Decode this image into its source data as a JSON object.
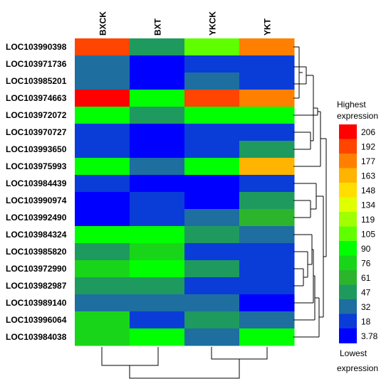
{
  "chart_data": {
    "type": "heatmap",
    "columns": [
      "BXCK",
      "BXT",
      "YKCK",
      "YKT"
    ],
    "rows": [
      "LOC103990398",
      "LOC103971736",
      "LOC103985201",
      "LOC103974663",
      "LOC103972072",
      "LOC103970727",
      "LOC103993650",
      "LOC103975993",
      "LOC103984439",
      "LOC103990974",
      "LOC103992490",
      "LOC103984324",
      "LOC103985820",
      "LOC103972990",
      "LOC103982987",
      "LOC103989140",
      "LOC103996064",
      "LOC103984038"
    ],
    "values": [
      [
        192,
        47,
        105,
        177
      ],
      [
        32,
        10,
        18,
        18
      ],
      [
        32,
        10,
        32,
        18
      ],
      [
        206,
        90,
        192,
        177
      ],
      [
        90,
        47,
        90,
        90
      ],
      [
        18,
        10,
        18,
        18
      ],
      [
        18,
        10,
        18,
        47
      ],
      [
        90,
        32,
        90,
        163
      ],
      [
        18,
        10,
        10,
        18
      ],
      [
        10,
        18,
        10,
        47
      ],
      [
        10,
        18,
        32,
        61
      ],
      [
        90,
        90,
        47,
        32
      ],
      [
        47,
        76,
        18,
        18
      ],
      [
        76,
        90,
        47,
        18
      ],
      [
        47,
        47,
        18,
        18
      ],
      [
        32,
        32,
        32,
        10
      ],
      [
        76,
        18,
        47,
        32
      ],
      [
        76,
        90,
        32,
        90
      ]
    ],
    "legend": {
      "title_top": [
        "Highest",
        "expression"
      ],
      "title_bottom": [
        "Lowest",
        "expression"
      ],
      "ticks": [
        "206",
        "192",
        "177",
        "163",
        "148",
        "134",
        "119",
        "105",
        "90",
        "76",
        "61",
        "47",
        "32",
        "18",
        "3.78"
      ],
      "colors": [
        "#ff0000",
        "#ff4500",
        "#ff8000",
        "#ffb400",
        "#ffde00",
        "#e0ff00",
        "#a0ff00",
        "#60ff00",
        "#00ff00",
        "#19d519",
        "#2cb52c",
        "#1f9a5e",
        "#1e6ea0",
        "#0a3cd8",
        "#0000ff"
      ]
    }
  }
}
